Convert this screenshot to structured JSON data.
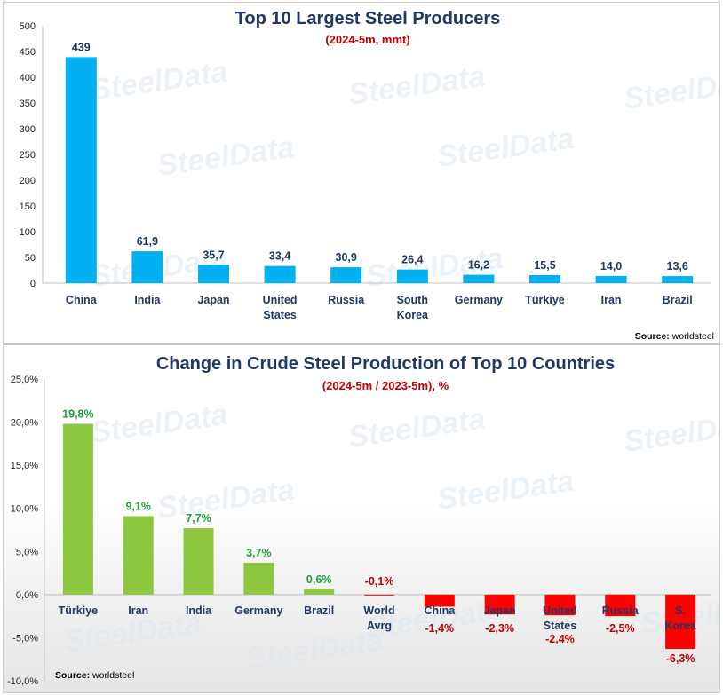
{
  "chart_data": [
    {
      "type": "bar",
      "title": "Top 10 Largest Steel Producers",
      "subtitle": "(2024-5m, mmt)",
      "categories": [
        "China",
        "India",
        "Japan",
        "United States",
        "Russia",
        "South Korea",
        "Germany",
        "Türkiye",
        "Iran",
        "Brazil"
      ],
      "values": [
        439,
        61.9,
        35.7,
        33.4,
        30.9,
        26.4,
        16.2,
        15.5,
        14.0,
        13.6
      ],
      "data_labels": [
        "439",
        "61,9",
        "35,7",
        "33,4",
        "30,9",
        "26,4",
        "16,2",
        "15,5",
        "14,0",
        "13,6"
      ],
      "ylim": [
        0,
        500
      ],
      "yticks": [
        0,
        50,
        100,
        150,
        200,
        250,
        300,
        350,
        400,
        450,
        500
      ],
      "ytick_labels": [
        "0",
        "50",
        "100",
        "150",
        "200",
        "250",
        "300",
        "350",
        "400",
        "450",
        "500"
      ],
      "bar_color": "#00b0f0",
      "label_color": "#1f3864",
      "grid": false,
      "source_label": "Source:",
      "source_value": "worldsteel",
      "watermark": "SteelData"
    },
    {
      "type": "bar",
      "title": "Change in Crude Steel Production of Top 10 Countries",
      "subtitle": "(2024-5m / 2023-5m), %",
      "categories": [
        "Türkiye",
        "Iran",
        "India",
        "Germany",
        "Brazil",
        "World Avrg",
        "China",
        "Japan",
        "United States",
        "Russia",
        "S. Korea"
      ],
      "values": [
        19.8,
        9.1,
        7.7,
        3.7,
        0.6,
        -0.1,
        -1.4,
        -2.3,
        -2.4,
        -2.5,
        -6.3
      ],
      "data_labels": [
        "19,8%",
        "9,1%",
        "7,7%",
        "3,7%",
        "0,6%",
        "-0,1%",
        "-1,4%",
        "-2,3%",
        "-2,4%",
        "-2,5%",
        "-6,3%"
      ],
      "ylim": [
        -10,
        25
      ],
      "yticks": [
        -10,
        -5,
        0,
        5,
        10,
        15,
        20,
        25
      ],
      "ytick_labels": [
        "-10,0%",
        "-5,0%",
        "0,0%",
        "5,0%",
        "10,0%",
        "15,0%",
        "20,0%",
        "25,0%"
      ],
      "positive_color": "#8dc63f",
      "negative_color": "#ff0000",
      "positive_label_color": "#1e9e3a",
      "negative_label_color": "#c00000",
      "grid": false,
      "source_label": "Source:",
      "source_value": "worldsteel",
      "watermark": "SteelData"
    }
  ]
}
